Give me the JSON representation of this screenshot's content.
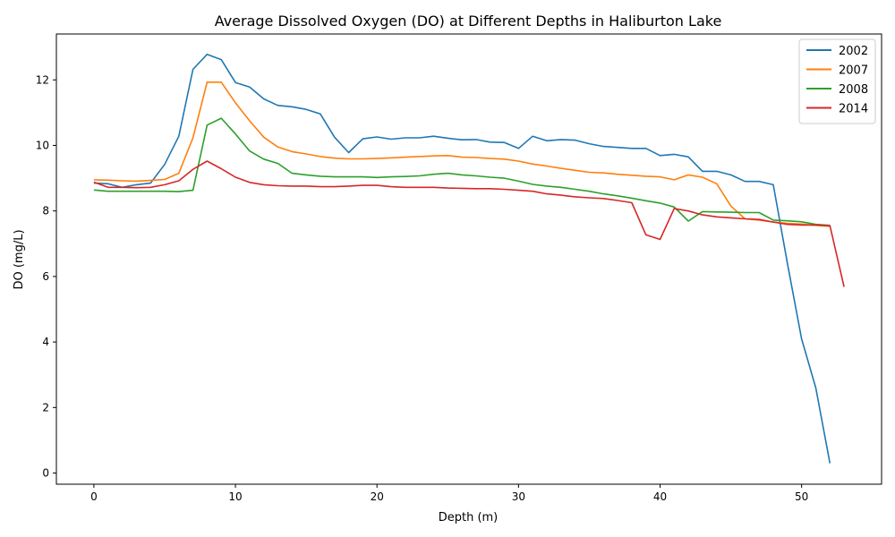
{
  "chart_data": {
    "type": "line",
    "title": "Average Dissolved Oxygen (DO) at Different Depths in Haliburton Lake",
    "xlabel": "Depth (m)",
    "ylabel": "DO (mg/L)",
    "xlim": [
      -2.65,
      55.65
    ],
    "ylim": [
      -0.34,
      13.4
    ],
    "xticks": [
      0,
      10,
      20,
      30,
      40,
      50
    ],
    "yticks": [
      0,
      2,
      4,
      6,
      8,
      10,
      12
    ],
    "grid": false,
    "legend_position": "top-right",
    "series": [
      {
        "name": "2002",
        "color": "#1f77b4",
        "x": [
          0,
          1,
          2,
          3,
          4,
          5,
          6,
          7,
          8,
          9,
          10,
          11,
          12,
          13,
          14,
          15,
          16,
          17,
          18,
          19,
          20,
          21,
          22,
          23,
          24,
          25,
          26,
          27,
          28,
          29,
          30,
          31,
          32,
          33,
          34,
          35,
          36,
          37,
          38,
          39,
          40,
          41,
          42,
          43,
          44,
          45,
          46,
          47,
          48,
          49,
          50,
          51,
          52
        ],
        "y": [
          8.85,
          8.83,
          8.72,
          8.8,
          8.85,
          9.42,
          10.28,
          12.32,
          12.78,
          12.62,
          11.92,
          11.78,
          11.42,
          11.22,
          11.18,
          11.1,
          10.96,
          10.25,
          9.78,
          10.2,
          10.26,
          10.19,
          10.23,
          10.23,
          10.28,
          10.22,
          10.17,
          10.18,
          10.1,
          10.09,
          9.91,
          10.28,
          10.14,
          10.18,
          10.16,
          10.05,
          9.97,
          9.94,
          9.91,
          9.91,
          9.69,
          9.73,
          9.65,
          9.21,
          9.21,
          9.1,
          8.9,
          8.9,
          8.8,
          6.4,
          4.1,
          2.6,
          0.3
        ]
      },
      {
        "name": "2007",
        "color": "#ff7f0e",
        "x": [
          0,
          1,
          2,
          3,
          4,
          5,
          6,
          7,
          8,
          9,
          10,
          11,
          12,
          13,
          14,
          15,
          16,
          17,
          18,
          19,
          20,
          21,
          22,
          23,
          24,
          25,
          26,
          27,
          28,
          29,
          30,
          31,
          32,
          33,
          34,
          35,
          36,
          37,
          38,
          39,
          40,
          41,
          42,
          43,
          44,
          45,
          46,
          47,
          48,
          49,
          50,
          51,
          52
        ],
        "y": [
          8.95,
          8.94,
          8.92,
          8.91,
          8.93,
          8.96,
          9.15,
          10.23,
          11.93,
          11.93,
          11.3,
          10.75,
          10.25,
          9.95,
          9.81,
          9.74,
          9.66,
          9.61,
          9.59,
          9.59,
          9.6,
          9.62,
          9.64,
          9.66,
          9.68,
          9.69,
          9.64,
          9.63,
          9.6,
          9.58,
          9.52,
          9.43,
          9.37,
          9.3,
          9.24,
          9.18,
          9.16,
          9.12,
          9.09,
          9.06,
          9.04,
          8.95,
          9.1,
          9.03,
          8.83,
          8.15,
          7.76,
          7.72,
          7.66,
          7.62,
          7.6,
          7.56,
          7.53
        ]
      },
      {
        "name": "2008",
        "color": "#2ca02c",
        "x": [
          0,
          1,
          2,
          3,
          4,
          5,
          6,
          7,
          8,
          9,
          10,
          11,
          12,
          13,
          14,
          15,
          16,
          17,
          18,
          19,
          20,
          21,
          22,
          23,
          24,
          25,
          26,
          27,
          28,
          29,
          30,
          31,
          32,
          33,
          34,
          35,
          36,
          37,
          38,
          39,
          40,
          41,
          42,
          43,
          44,
          45,
          46,
          47,
          48,
          49,
          50,
          51,
          52
        ],
        "y": [
          8.64,
          8.6,
          8.6,
          8.6,
          8.6,
          8.6,
          8.59,
          8.63,
          10.62,
          10.83,
          10.35,
          9.83,
          9.58,
          9.45,
          9.15,
          9.1,
          9.06,
          9.04,
          9.04,
          9.04,
          9.02,
          9.04,
          9.05,
          9.07,
          9.12,
          9.15,
          9.1,
          9.07,
          9.03,
          9.0,
          8.91,
          8.81,
          8.76,
          8.72,
          8.66,
          8.6,
          8.52,
          8.46,
          8.39,
          8.31,
          8.24,
          8.12,
          7.69,
          7.98,
          7.97,
          7.96,
          7.95,
          7.95,
          7.72,
          7.7,
          7.67,
          7.59,
          7.56
        ]
      },
      {
        "name": "2014",
        "color": "#d62728",
        "x": [
          0,
          1,
          2,
          3,
          4,
          5,
          6,
          7,
          8,
          9,
          10,
          11,
          12,
          13,
          14,
          15,
          16,
          17,
          18,
          19,
          20,
          21,
          22,
          23,
          24,
          25,
          26,
          27,
          28,
          29,
          30,
          31,
          32,
          33,
          34,
          35,
          36,
          37,
          38,
          39,
          40,
          41,
          42,
          43,
          44,
          45,
          46,
          47,
          48,
          49,
          50,
          51,
          52,
          53
        ],
        "y": [
          8.88,
          8.72,
          8.72,
          8.71,
          8.72,
          8.8,
          8.92,
          9.27,
          9.52,
          9.29,
          9.03,
          8.87,
          8.8,
          8.77,
          8.76,
          8.76,
          8.74,
          8.74,
          8.76,
          8.78,
          8.78,
          8.74,
          8.72,
          8.72,
          8.72,
          8.7,
          8.69,
          8.68,
          8.68,
          8.66,
          8.63,
          8.6,
          8.52,
          8.48,
          8.43,
          8.4,
          8.38,
          8.32,
          8.25,
          7.27,
          7.13,
          8.07,
          8.0,
          7.88,
          7.82,
          7.79,
          7.76,
          7.74,
          7.66,
          7.59,
          7.57,
          7.57,
          7.55,
          5.68
        ]
      }
    ]
  }
}
